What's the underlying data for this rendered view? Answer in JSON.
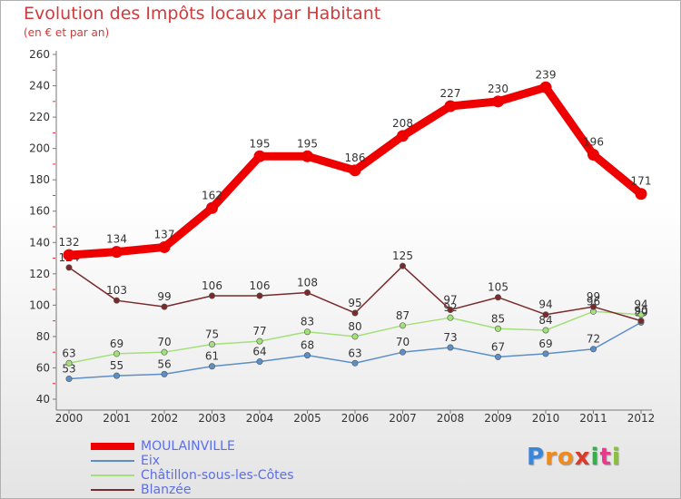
{
  "chart_data": {
    "type": "line",
    "title": "Evolution des Impôts locaux par Habitant",
    "subtitle": "(en € et par an)",
    "xlabel": "",
    "ylabel": "",
    "categories": [
      "2000",
      "2001",
      "2002",
      "2003",
      "2004",
      "2005",
      "2006",
      "2007",
      "2008",
      "2009",
      "2010",
      "2011",
      "2012"
    ],
    "ylim": [
      40,
      260
    ],
    "yticks": [
      40,
      60,
      80,
      100,
      120,
      140,
      160,
      180,
      200,
      220,
      240,
      260
    ],
    "grid": false,
    "legend_position": "bottom-left",
    "series": [
      {
        "name": "MOULAINVILLE",
        "color": "#ee0000",
        "values": [
          132,
          134,
          137,
          162,
          195,
          195,
          186,
          208,
          227,
          230,
          239,
          196,
          171
        ]
      },
      {
        "name": "Eix",
        "color": "#5b8fc7",
        "values": [
          53,
          55,
          56,
          61,
          64,
          68,
          63,
          70,
          73,
          67,
          69,
          72,
          89
        ]
      },
      {
        "name": "Châtillon-sous-les-Côtes",
        "color": "#a3e07a",
        "values": [
          63,
          69,
          70,
          75,
          77,
          83,
          80,
          87,
          92,
          85,
          84,
          96,
          94
        ]
      },
      {
        "name": "Blanzée",
        "color": "#7a2a2a",
        "values": [
          124,
          103,
          99,
          106,
          106,
          108,
          95,
          125,
          97,
          105,
          94,
          99,
          90
        ]
      }
    ]
  },
  "logo": {
    "letters": [
      "P",
      "r",
      "o",
      "x",
      "i",
      "t",
      "i"
    ],
    "colors": [
      "#3a86d8",
      "#f08a1c",
      "#f08a1c",
      "#d93a2a",
      "#33b04a",
      "#e83a8a",
      "#8bc03a"
    ]
  }
}
